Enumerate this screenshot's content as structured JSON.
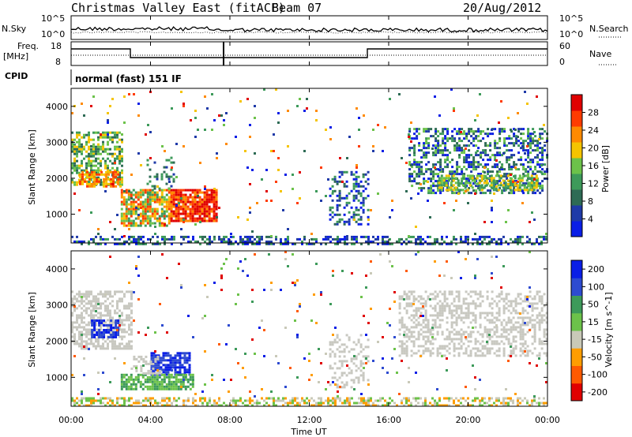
{
  "header": {
    "station": "Christmas Valley East (fitACF)",
    "beam": "Beam 07",
    "date": "20/Aug/2012"
  },
  "noise_panel": {
    "left_label": "N.Sky",
    "right_label": "N.Search",
    "left_ticks": [
      "10^5",
      "10^0"
    ],
    "right_ticks": [
      "10^5",
      "10^0"
    ]
  },
  "freq_panel": {
    "left_label_1": "Freq.",
    "left_label_2": "[MHz]",
    "right_label": "Nave",
    "left_ticks": [
      "18",
      "8"
    ],
    "right_ticks": [
      "60",
      "0"
    ]
  },
  "cpid": {
    "label": "CPID",
    "value": "normal (fast) 151 IF"
  },
  "colors": {
    "power": [
      "#0a1ee6",
      "#1f3aa8",
      "#2e6b55",
      "#3d9a5a",
      "#6cc24a",
      "#f5c400",
      "#ff8a00",
      "#ff3b00",
      "#e00000"
    ],
    "velocity": [
      "#e00000",
      "#ff5a00",
      "#ff9d00",
      "#c9c9b8",
      "#6cc24a",
      "#3d9a5a",
      "#2e4bd0",
      "#0a1ee6"
    ],
    "ground_scatter": "#c8c8c0"
  },
  "chart_data": [
    {
      "type": "heatmap",
      "panel": "power",
      "xlabel": "",
      "ylabel": "Slant Range [km]",
      "xlim": [
        "00:00",
        "00:00"
      ],
      "ylim": [
        200,
        4500
      ],
      "yticks": [
        1000,
        2000,
        3000,
        4000
      ],
      "colorbar": {
        "label": "Power [dB]",
        "range": [
          0,
          32
        ],
        "ticks": [
          4,
          8,
          12,
          16,
          20,
          24,
          28
        ]
      },
      "regions": [
        {
          "x": [
            0.0,
            2.5
          ],
          "y": [
            1700,
            3300
          ],
          "value": "12-20 dB"
        },
        {
          "x": [
            2.5,
            5.5
          ],
          "y": [
            700,
            1700
          ],
          "value": "16-28 dB"
        },
        {
          "x": [
            5.5,
            7.5
          ],
          "y": [
            800,
            1700
          ],
          "value": "20-28 dB"
        },
        {
          "x": [
            13.0,
            15.0
          ],
          "y": [
            700,
            2200
          ],
          "value": "4-12 dB"
        },
        {
          "x": [
            17.0,
            24.0
          ],
          "y": [
            1600,
            3400
          ],
          "value": "4-16 dB"
        }
      ]
    },
    {
      "type": "heatmap",
      "panel": "velocity",
      "xlabel": "Time UT",
      "ylabel": "Slant Range [km]",
      "xticks": [
        "00:00",
        "04:00",
        "08:00",
        "12:00",
        "16:00",
        "20:00",
        "00:00"
      ],
      "ylim": [
        200,
        4500
      ],
      "yticks": [
        1000,
        2000,
        3000,
        4000
      ],
      "colorbar": {
        "label": "Velocity [m s^-1]",
        "ticks": [
          "200",
          "100",
          "50",
          "15",
          "-15",
          "-50",
          "-100",
          "-200"
        ]
      },
      "regions": [
        {
          "x": [
            0.0,
            3.0
          ],
          "y": [
            1800,
            3400
          ],
          "value": "ground scatter"
        },
        {
          "x": [
            1.0,
            2.5
          ],
          "y": [
            2100,
            2600
          ],
          "value": "150-200 m/s"
        },
        {
          "x": [
            4.0,
            6.0
          ],
          "y": [
            1100,
            1700
          ],
          "value": "100-200 m/s"
        },
        {
          "x": [
            2.5,
            6.0
          ],
          "y": [
            700,
            1100
          ],
          "value": "15-50 m/s"
        },
        {
          "x": [
            13.0,
            15.0
          ],
          "y": [
            700,
            2200
          ],
          "value": "ground scatter"
        },
        {
          "x": [
            16.5,
            24.0
          ],
          "y": [
            1600,
            3400
          ],
          "value": "ground scatter"
        }
      ]
    }
  ]
}
